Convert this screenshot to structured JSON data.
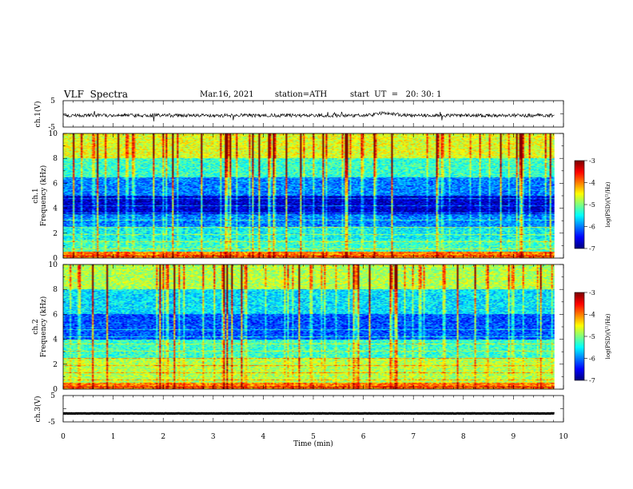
{
  "header": {
    "title": "VLF  Spectra",
    "date": "Mar.16, 2021",
    "station": "station=ATH",
    "start_ut": "start  UT  =   20: 30: 1"
  },
  "chart_data": [
    {
      "type": "line",
      "panel": "ch1-waveform",
      "ylabel": "ch.1(V)",
      "ylim": [
        -5,
        5
      ],
      "yticks": [
        5,
        -5
      ],
      "xlim": [
        0,
        10
      ],
      "description_series": "waveform, baseline ≈ -0.6 V with bursts around 6.5 min",
      "baseline_v": -0.6,
      "burst_times_min": [
        2.6,
        3.1,
        3.3,
        3.9,
        6.3,
        6.5,
        6.6
      ]
    },
    {
      "type": "heatmap",
      "panel": "ch1-spectrogram",
      "ylabel": "ch.1\nFrequency (kHz)",
      "ylim": [
        0,
        10
      ],
      "yticks": [
        0,
        2,
        4,
        6,
        8,
        10
      ],
      "xlim": [
        0,
        10
      ],
      "band_levels": [
        {
          "f_khz": [
            0,
            0.5
          ],
          "level": -4.0
        },
        {
          "f_khz": [
            0.5,
            1.5
          ],
          "level": -5.3
        },
        {
          "f_khz": [
            1.5,
            2.5
          ],
          "level": -5.5
        },
        {
          "f_khz": [
            2.5,
            3.5
          ],
          "level": -6.0
        },
        {
          "f_khz": [
            3.5,
            5.0
          ],
          "level": -6.7
        },
        {
          "f_khz": [
            5.0,
            6.5
          ],
          "level": -6.0
        },
        {
          "f_khz": [
            6.5,
            8.0
          ],
          "level": -5.3
        },
        {
          "f_khz": [
            8.0,
            10.0
          ],
          "level": -4.6
        }
      ]
    },
    {
      "type": "heatmap",
      "panel": "ch2-spectrogram",
      "ylabel": "ch.2\nFrequency (kHz)",
      "ylim": [
        0,
        10
      ],
      "yticks": [
        0,
        2,
        4,
        6,
        8,
        10
      ],
      "xlim": [
        0,
        10
      ],
      "band_levels": [
        {
          "f_khz": [
            0,
            0.5
          ],
          "level": -4.0
        },
        {
          "f_khz": [
            0.5,
            2.5
          ],
          "level": -4.8
        },
        {
          "f_khz": [
            2.5,
            4.0
          ],
          "level": -5.3
        },
        {
          "f_khz": [
            4.0,
            6.0
          ],
          "level": -6.2
        },
        {
          "f_khz": [
            6.0,
            8.0
          ],
          "level": -5.6
        },
        {
          "f_khz": [
            8.0,
            10.0
          ],
          "level": -4.8
        }
      ]
    },
    {
      "type": "line",
      "panel": "ch3-waveform",
      "ylabel": "ch.3(V)",
      "ylim": [
        -5,
        5
      ],
      "yticks": [
        5,
        -5
      ],
      "xlim": [
        0,
        10
      ],
      "xlabel": "Time  (min)",
      "xticks": [
        0,
        1,
        2,
        3,
        4,
        5,
        6,
        7,
        8,
        9,
        10
      ],
      "baseline_v": -1.8
    }
  ],
  "colorbar": {
    "label": "log(PSD)(V²/Hz)",
    "range": [
      -7,
      -3
    ],
    "ticks": [
      -3,
      -4,
      -5,
      -6,
      -7
    ]
  },
  "colors": {
    "frame": "#000000",
    "waveform": "#000000"
  }
}
